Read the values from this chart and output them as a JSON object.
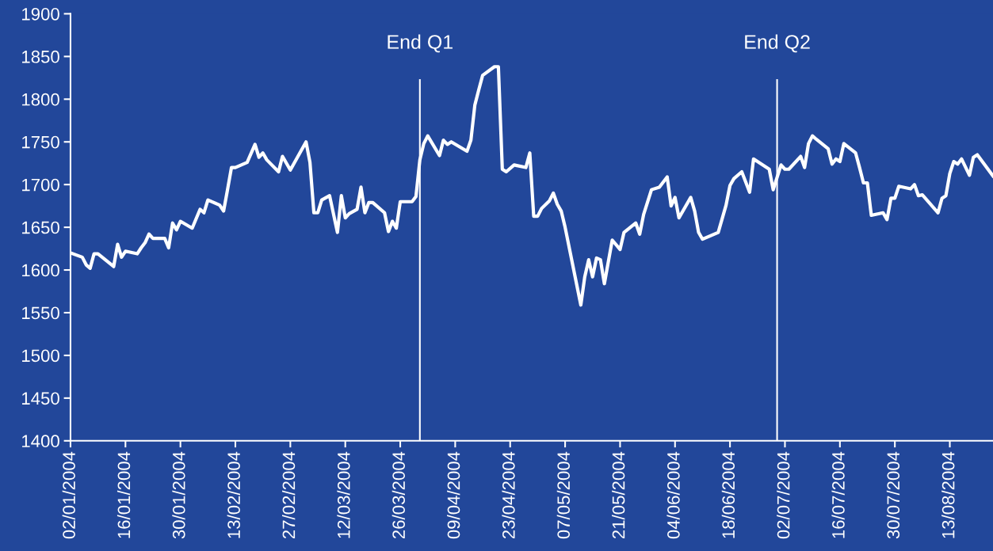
{
  "chart_data": {
    "type": "line",
    "x": [
      "2004-01-02",
      "2004-01-05",
      "2004-01-06",
      "2004-01-07",
      "2004-01-08",
      "2004-01-09",
      "2004-01-13",
      "2004-01-14",
      "2004-01-15",
      "2004-01-16",
      "2004-01-19",
      "2004-01-20",
      "2004-01-21",
      "2004-01-22",
      "2004-01-23",
      "2004-01-26",
      "2004-01-27",
      "2004-01-28",
      "2004-01-29",
      "2004-01-30",
      "2004-02-02",
      "2004-02-04",
      "2004-02-05",
      "2004-02-06",
      "2004-02-09",
      "2004-02-10",
      "2004-02-11",
      "2004-02-12",
      "2004-02-13",
      "2004-02-16",
      "2004-02-18",
      "2004-02-19",
      "2004-02-20",
      "2004-02-21",
      "2004-02-24",
      "2004-02-25",
      "2004-02-27",
      "2004-03-02",
      "2004-03-03",
      "2004-03-04",
      "2004-03-05",
      "2004-03-06",
      "2004-03-08",
      "2004-03-10",
      "2004-03-11",
      "2004-03-12",
      "2004-03-13",
      "2004-03-15",
      "2004-03-16",
      "2004-03-17",
      "2004-03-18",
      "2004-03-19",
      "2004-03-22",
      "2004-03-23",
      "2004-03-24",
      "2004-03-25",
      "2004-03-26",
      "2004-03-29",
      "2004-03-30",
      "2004-03-31",
      "2004-04-01",
      "2004-04-02",
      "2004-04-05",
      "2004-04-06",
      "2004-04-07",
      "2004-04-08",
      "2004-04-12",
      "2004-04-13",
      "2004-04-14",
      "2004-04-15",
      "2004-04-16",
      "2004-04-19",
      "2004-04-20",
      "2004-04-21",
      "2004-04-22",
      "2004-04-24",
      "2004-04-27",
      "2004-04-28",
      "2004-04-29",
      "2004-04-30",
      "2004-05-01",
      "2004-05-03",
      "2004-05-04",
      "2004-05-05",
      "2004-05-06",
      "2004-05-07",
      "2004-05-11",
      "2004-05-12",
      "2004-05-13",
      "2004-05-14",
      "2004-05-15",
      "2004-05-16",
      "2004-05-17",
      "2004-05-19",
      "2004-05-21",
      "2004-05-22",
      "2004-05-25",
      "2004-05-26",
      "2004-05-27",
      "2004-05-29",
      "2004-05-31",
      "2004-06-02",
      "2004-06-03",
      "2004-06-04",
      "2004-06-05",
      "2004-06-08",
      "2004-06-09",
      "2004-06-10",
      "2004-06-11",
      "2004-06-15",
      "2004-06-17",
      "2004-06-18",
      "2004-06-19",
      "2004-06-21",
      "2004-06-23",
      "2004-06-24",
      "2004-06-28",
      "2004-06-29",
      "2004-07-01",
      "2004-07-02",
      "2004-07-03",
      "2004-07-06",
      "2004-07-07",
      "2004-07-08",
      "2004-07-09",
      "2004-07-10",
      "2004-07-13",
      "2004-07-14",
      "2004-07-15",
      "2004-07-16",
      "2004-07-17",
      "2004-07-20",
      "2004-07-21",
      "2004-07-22",
      "2004-07-23",
      "2004-07-24",
      "2004-07-27",
      "2004-07-28",
      "2004-07-29",
      "2004-07-30",
      "2004-07-31",
      "2004-08-03",
      "2004-08-04",
      "2004-08-05",
      "2004-08-06",
      "2004-08-10",
      "2004-08-11",
      "2004-08-12",
      "2004-08-13",
      "2004-08-14",
      "2004-08-15",
      "2004-08-16",
      "2004-08-18",
      "2004-08-19",
      "2004-08-20",
      "2004-08-24"
    ],
    "series": [
      {
        "color": "#ffffff",
        "values": [
          1620,
          1615,
          1606,
          1602,
          1619,
          1619,
          1604,
          1630,
          1615,
          1622,
          1619,
          1626,
          1632,
          1642,
          1637,
          1637,
          1626,
          1655,
          1647,
          1657,
          1649,
          1671,
          1667,
          1682,
          1676,
          1669,
          1694,
          1720,
          1720,
          1726,
          1747,
          1732,
          1737,
          1729,
          1715,
          1733,
          1717,
          1750,
          1726,
          1667,
          1667,
          1682,
          1687,
          1644,
          1687,
          1661,
          1666,
          1671,
          1697,
          1667,
          1679,
          1679,
          1667,
          1645,
          1657,
          1649,
          1680,
          1680,
          1686,
          1729,
          1748,
          1757,
          1734,
          1752,
          1747,
          1750,
          1739,
          1752,
          1793,
          1811,
          1828,
          1838,
          1838,
          1718,
          1715,
          1723,
          1720,
          1737,
          1663,
          1663,
          1672,
          1681,
          1690,
          1677,
          1669,
          1650,
          1559,
          1592,
          1612,
          1592,
          1614,
          1612,
          1584,
          1635,
          1624,
          1644,
          1655,
          1642,
          1665,
          1694,
          1697,
          1709,
          1675,
          1685,
          1661,
          1685,
          1669,
          1644,
          1636,
          1644,
          1676,
          1699,
          1707,
          1715,
          1691,
          1730,
          1718,
          1694,
          1723,
          1718,
          1718,
          1733,
          1720,
          1748,
          1757,
          1753,
          1742,
          1724,
          1730,
          1727,
          1748,
          1737,
          1720,
          1702,
          1702,
          1664,
          1667,
          1659,
          1684,
          1684,
          1698,
          1695,
          1700,
          1687,
          1688,
          1667,
          1684,
          1687,
          1713,
          1727,
          1724,
          1730,
          1711,
          1732,
          1735,
          1710
        ]
      }
    ],
    "xlim": [
      "2004-01-02",
      "2004-08-24"
    ],
    "xticks": [
      {
        "value": "2004-01-02",
        "label": "02/01/2004"
      },
      {
        "value": "2004-01-16",
        "label": "16/01/2004"
      },
      {
        "value": "2004-01-30",
        "label": "30/01/2004"
      },
      {
        "value": "2004-02-13",
        "label": "13/02/2004"
      },
      {
        "value": "2004-02-27",
        "label": "27/02/2004"
      },
      {
        "value": "2004-03-12",
        "label": "12/03/2004"
      },
      {
        "value": "2004-03-26",
        "label": "26/03/2004"
      },
      {
        "value": "2004-04-09",
        "label": "09/04/2004"
      },
      {
        "value": "2004-04-23",
        "label": "23/04/2004"
      },
      {
        "value": "2004-05-07",
        "label": "07/05/2004"
      },
      {
        "value": "2004-05-21",
        "label": "21/05/2004"
      },
      {
        "value": "2004-06-04",
        "label": "04/06/2004"
      },
      {
        "value": "2004-06-18",
        "label": "18/06/2004"
      },
      {
        "value": "2004-07-02",
        "label": "02/07/2004"
      },
      {
        "value": "2004-07-16",
        "label": "16/07/2004"
      },
      {
        "value": "2004-07-30",
        "label": "30/07/2004"
      },
      {
        "value": "2004-08-13",
        "label": "13/08/2004"
      }
    ],
    "ylim": [
      1400,
      1900
    ],
    "yticks": [
      1400,
      1450,
      1500,
      1550,
      1600,
      1650,
      1700,
      1750,
      1800,
      1850,
      1900
    ],
    "ref_lines": [
      {
        "axis": "x",
        "value": "2004-03-31",
        "label": "End Q1",
        "color": "#ffffff"
      },
      {
        "axis": "x",
        "value": "2004-06-30",
        "label": "End Q2",
        "color": "#ffffff"
      }
    ],
    "grid": false,
    "legend": false,
    "marker": "none",
    "line_style": "solid"
  }
}
